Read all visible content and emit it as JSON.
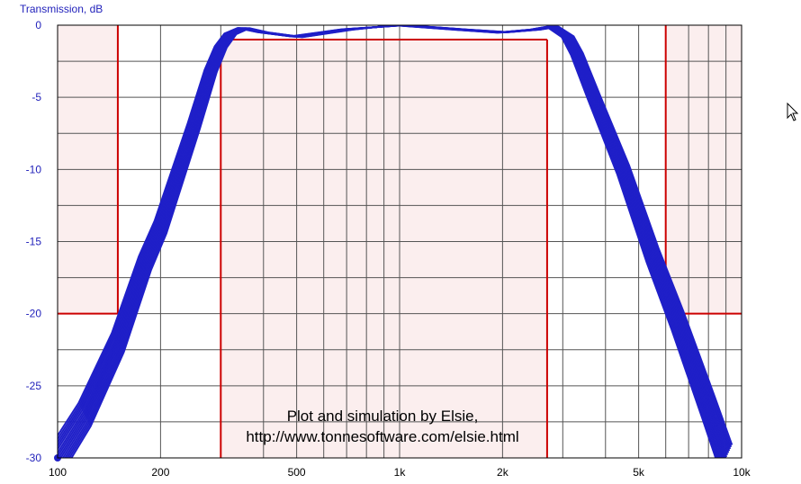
{
  "chart_data": {
    "type": "line",
    "ylabel": "Transmission, dB",
    "xlabel": "",
    "x_scale": "log",
    "xlim": [
      100,
      10000
    ],
    "ylim": [
      -30,
      0
    ],
    "x_ticks": [
      {
        "value": 100,
        "label": "100"
      },
      {
        "value": 200,
        "label": "200"
      },
      {
        "value": 500,
        "label": "500"
      },
      {
        "value": 1000,
        "label": "1k"
      },
      {
        "value": 2000,
        "label": "2k"
      },
      {
        "value": 5000,
        "label": "5k"
      },
      {
        "value": 10000,
        "label": "10k"
      }
    ],
    "y_ticks": [
      {
        "value": 0,
        "label": "0"
      },
      {
        "value": -5,
        "label": "-5"
      },
      {
        "value": -10,
        "label": "-10"
      },
      {
        "value": -15,
        "label": "-15"
      },
      {
        "value": -20,
        "label": "-20"
      },
      {
        "value": -25,
        "label": "-25"
      },
      {
        "value": -30,
        "label": "-30"
      }
    ],
    "grid": true,
    "series": [
      {
        "values": [
          [
            100,
            -30
          ],
          [
            120,
            -27
          ],
          [
            150,
            -22
          ],
          [
            180,
            -16.5
          ],
          [
            200,
            -14
          ],
          [
            250,
            -7
          ],
          [
            280,
            -3.2
          ],
          [
            300,
            -1.5
          ],
          [
            320,
            -0.6
          ],
          [
            350,
            -0.2
          ],
          [
            400,
            -0.5
          ],
          [
            500,
            -0.8
          ],
          [
            700,
            -0.3
          ],
          [
            1000,
            0
          ],
          [
            1500,
            -0.3
          ],
          [
            2000,
            -0.5
          ],
          [
            2500,
            -0.3
          ],
          [
            2800,
            -0.1
          ],
          [
            3100,
            -0.8
          ],
          [
            3300,
            -2
          ],
          [
            3700,
            -5
          ],
          [
            4500,
            -10
          ],
          [
            5500,
            -16
          ],
          [
            6500,
            -20.5
          ],
          [
            8000,
            -26.5
          ],
          [
            9000,
            -30
          ]
        ],
        "spread_db": 1.8,
        "color": "#1f1fc8"
      }
    ],
    "stopband_low": {
      "f_max": 150,
      "reject_db": -20
    },
    "passband": {
      "f_min": 300,
      "f_max": 2700,
      "ripple_db": -1
    },
    "stopband_high": {
      "f_min": 6000,
      "reject_db": -20
    },
    "mask_color": "#cc0000",
    "mask_fill": "#fbeeee"
  },
  "annotation": {
    "line1": "Plot and simulation by Elsie,",
    "line2": "http://www.tonnesoftware.com/elsie.html"
  },
  "colors": {
    "grid": "#555555",
    "frame": "#000000",
    "axis_text": "#2222bb"
  },
  "cursor_icon": "mouse-pointer-icon"
}
